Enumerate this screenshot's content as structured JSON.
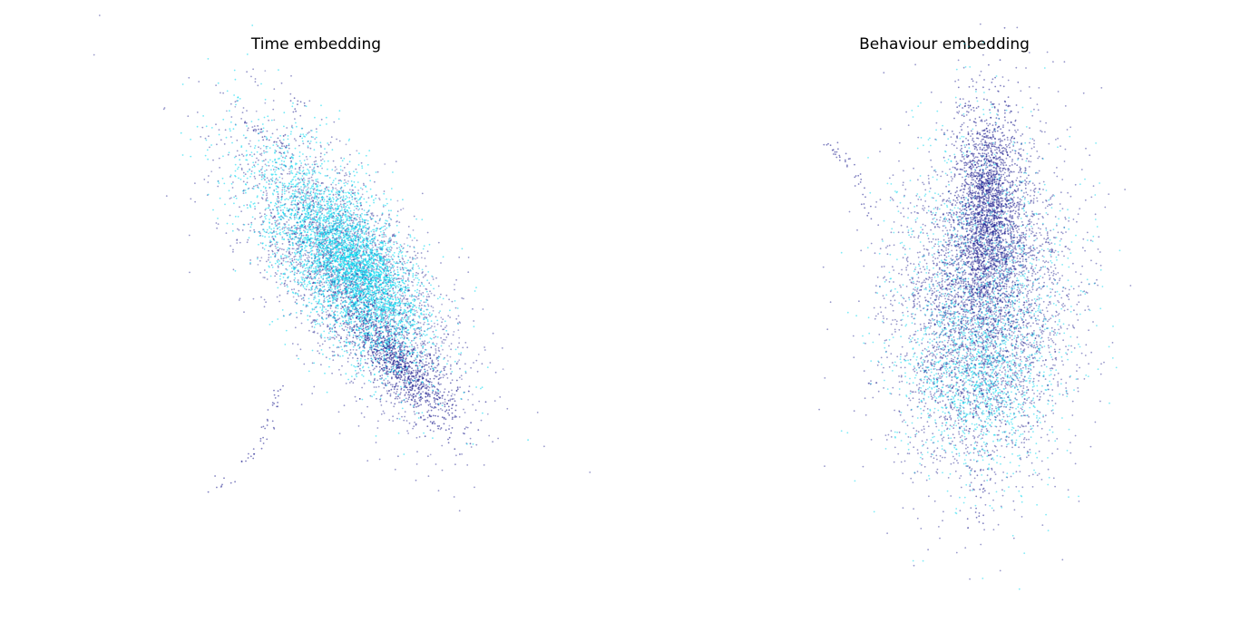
{
  "figure": {
    "panels": [
      {
        "title": "Time embedding"
      },
      {
        "title": "Behaviour embedding"
      }
    ]
  },
  "chart_data": [
    {
      "type": "scatter",
      "title": "Time embedding",
      "xlabel": "",
      "ylabel": "",
      "axes_visible": false,
      "grid": false,
      "colors": {
        "low": "#00008b",
        "high": "#00e5ff"
      },
      "series": [
        {
          "color": "#1a1a8c",
          "count": 4200
        },
        {
          "color": "#00d8f0",
          "count": 4200
        }
      ]
    },
    {
      "type": "scatter",
      "title": "Behaviour embedding",
      "xlabel": "",
      "ylabel": "",
      "axes_visible": false,
      "grid": false,
      "colors": {
        "low": "#00008b",
        "high": "#00e5ff"
      },
      "series": [
        {
          "color": "#1a1a8c",
          "count": 6000
        },
        {
          "color": "#00d8f0",
          "count": 2200
        }
      ]
    }
  ]
}
